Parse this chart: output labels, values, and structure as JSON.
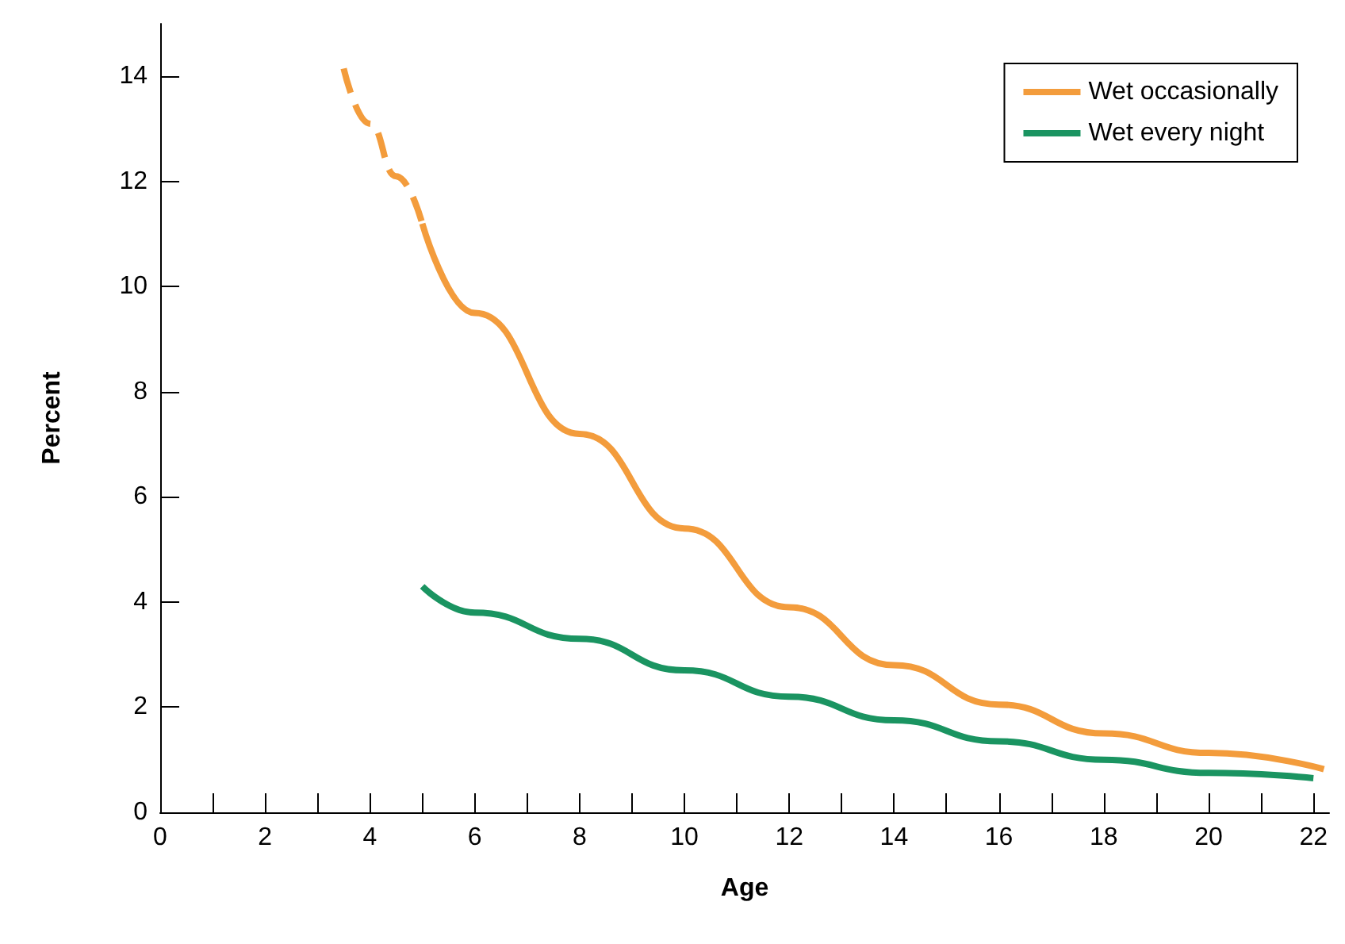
{
  "chart_data": {
    "type": "line",
    "xlabel": "Age",
    "ylabel": "Percent",
    "xlim": [
      0,
      22.3
    ],
    "ylim": [
      0,
      15
    ],
    "xticks": [
      0,
      {
        "value": 1,
        "label": null
      },
      2,
      {
        "value": 3,
        "label": null
      },
      4,
      {
        "value": 5,
        "label": null
      },
      6,
      {
        "value": 7,
        "label": null
      },
      8,
      {
        "value": 9,
        "label": null
      },
      10,
      {
        "value": 11,
        "label": null
      },
      12,
      {
        "value": 13,
        "label": null
      },
      14,
      {
        "value": 15,
        "label": null
      },
      16,
      {
        "value": 17,
        "label": null
      },
      18,
      {
        "value": 19,
        "label": null
      },
      20,
      {
        "value": 21,
        "label": null
      },
      22
    ],
    "yticks": [
      0,
      2,
      4,
      6,
      8,
      10,
      12,
      14
    ],
    "grid": false,
    "legend": "top right",
    "marker": "none",
    "series": [
      {
        "color": "#f39c3c",
        "line_style": "dashed",
        "x": [
          3.5,
          4,
          4.5,
          5
        ],
        "values": [
          14.15,
          13.1,
          12.1,
          11.2
        ]
      },
      {
        "name": "Wet occasionally",
        "color": "#f39c3c",
        "line_style": "solid",
        "x": [
          5,
          6,
          8,
          10,
          12,
          14,
          16,
          18,
          20,
          22.2
        ],
        "values": [
          11.2,
          9.5,
          7.2,
          5.4,
          3.9,
          2.8,
          2.05,
          1.5,
          1.13,
          0.82
        ]
      },
      {
        "name": "Wet every night",
        "color": "#1a9461",
        "line_style": "solid",
        "x": [
          5,
          6,
          8,
          10,
          12,
          14,
          16,
          18,
          20,
          22
        ],
        "values": [
          4.3,
          3.8,
          3.3,
          2.7,
          2.2,
          1.75,
          1.35,
          1.0,
          0.75,
          0.65
        ]
      }
    ]
  }
}
